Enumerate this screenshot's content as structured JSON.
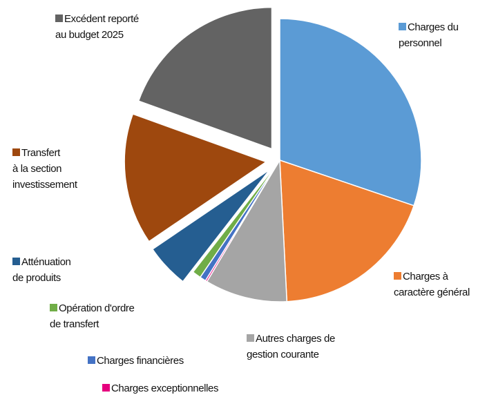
{
  "chart_data": {
    "type": "pie",
    "categories": [
      "Charges du\npersonnel",
      "Charges à\ncaractère général",
      "Autres charges de\ngestion courante",
      "Charges exceptionnelles",
      "Charges financières",
      "Opération d'ordre\nde transfert",
      "Atténuation\nde produits",
      "Transfert\nà la section\ninvestissement",
      "Excédent reporté\nau budget 2025"
    ],
    "values": [
      30.2,
      19,
      9.4,
      0.2,
      0.7,
      1,
      5,
      15,
      19.5
    ],
    "colors": [
      "#5b9bd5",
      "#ed7d31",
      "#a5a5a5",
      "#e6007e",
      "#4472c4",
      "#70ad47",
      "#255e91",
      "#9e480e",
      "#636363"
    ],
    "explode": [
      false,
      false,
      false,
      false,
      false,
      false,
      true,
      true,
      true
    ],
    "legend": "beside slices"
  }
}
